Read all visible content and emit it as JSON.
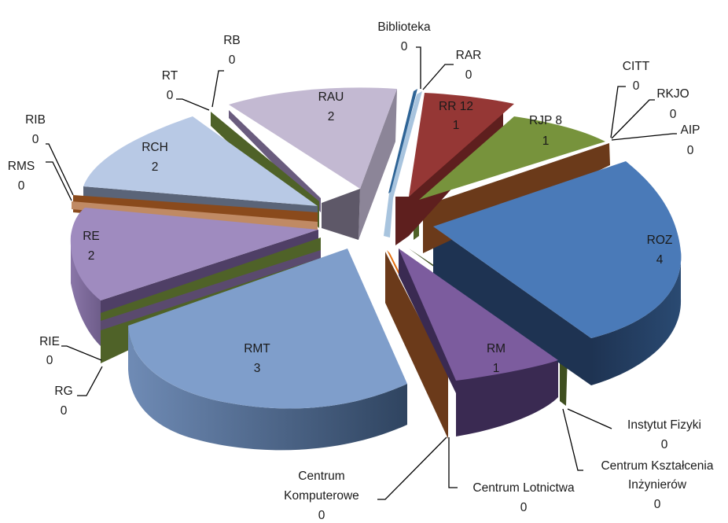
{
  "chart_data": {
    "type": "pie",
    "style": "3d-exploded",
    "title": "",
    "show_legend": false,
    "slices": [
      {
        "label": "Biblioteka",
        "value": 0,
        "color": "#2e6496"
      },
      {
        "label": "RAR",
        "value": 0,
        "color": "#b9d2ea"
      },
      {
        "label": "RR 12",
        "value": 1,
        "color": "#953735"
      },
      {
        "label": "RJP 8",
        "value": 1,
        "color": "#77933c"
      },
      {
        "label": "CITT",
        "value": 0,
        "color": "#8eb4e3"
      },
      {
        "label": "RKJO",
        "value": 0,
        "color": "#604a7b"
      },
      {
        "label": "AIP",
        "value": 0,
        "color": "#8a4a1c"
      },
      {
        "label": "ROZ",
        "value": 4,
        "color": "#4a7ab8"
      },
      {
        "label": "Instytut Fizyki",
        "value": 0,
        "color": "#4f6228"
      },
      {
        "label": "Centrum Kształcenia Inżynierów",
        "value": 0,
        "color": "#3a5a20"
      },
      {
        "label": "RM",
        "value": 1,
        "color": "#7c5c9e"
      },
      {
        "label": "Centrum Lotnictwa",
        "value": 0,
        "color": "#e46c0a"
      },
      {
        "label": "Centrum Komputerowe",
        "value": 0,
        "color": "#6b3a1a"
      },
      {
        "label": "RMT",
        "value": 3,
        "color": "#7f9ecb"
      },
      {
        "label": "RG",
        "value": 0,
        "color": "#4f6228"
      },
      {
        "label": "RIE",
        "value": 0,
        "color": "#5a4a6e"
      },
      {
        "label": "RE",
        "value": 2,
        "color": "#9f8bbf"
      },
      {
        "label": "RMS",
        "value": 0,
        "color": "#d7a07a"
      },
      {
        "label": "RIB",
        "value": 0,
        "color": "#8a4a1c"
      },
      {
        "label": "RCH",
        "value": 2,
        "color": "#b8c9e5"
      },
      {
        "label": "RT",
        "value": 0,
        "color": "#4f6228"
      },
      {
        "label": "RB",
        "value": 0,
        "color": "#7a6a8e"
      },
      {
        "label": "RAU",
        "value": 2,
        "color": "#c3b9d2"
      }
    ]
  },
  "text_labels": {
    "biblioteka": {
      "name": "Biblioteka",
      "value": "0"
    },
    "rar": {
      "name": "RAR",
      "value": "0"
    },
    "rr12": {
      "name": "RR 12",
      "value": "1"
    },
    "rjp8": {
      "name": "RJP 8",
      "value": "1"
    },
    "citt": {
      "name": "CITT",
      "value": "0"
    },
    "rkjo": {
      "name": "RKJO",
      "value": "0"
    },
    "aip": {
      "name": "AIP",
      "value": "0"
    },
    "roz": {
      "name": "ROZ",
      "value": "4"
    },
    "instytut_fizyki": {
      "name": "Instytut Fizyki",
      "value": "0"
    },
    "centrum_ksztalcenia": {
      "name_line1": "Centrum Kształcenia",
      "name_line2": "Inżynierów",
      "value": "0"
    },
    "rm": {
      "name": "RM",
      "value": "1"
    },
    "centrum_lotnictwa": {
      "name": "Centrum Lotnictwa",
      "value": "0"
    },
    "centrum_komputerowe": {
      "name_line1": "Centrum",
      "name_line2": "Komputerowe",
      "value": "0"
    },
    "rmt": {
      "name": "RMT",
      "value": "3"
    },
    "rg": {
      "name": "RG",
      "value": "0"
    },
    "rie": {
      "name": "RIE",
      "value": "0"
    },
    "re": {
      "name": "RE",
      "value": "2"
    },
    "rms": {
      "name": "RMS",
      "value": "0"
    },
    "rib": {
      "name": "RIB",
      "value": "0"
    },
    "rch": {
      "name": "RCH",
      "value": "2"
    },
    "rt": {
      "name": "RT",
      "value": "0"
    },
    "rb": {
      "name": "RB",
      "value": "0"
    },
    "rau": {
      "name": "RAU",
      "value": "2"
    }
  }
}
